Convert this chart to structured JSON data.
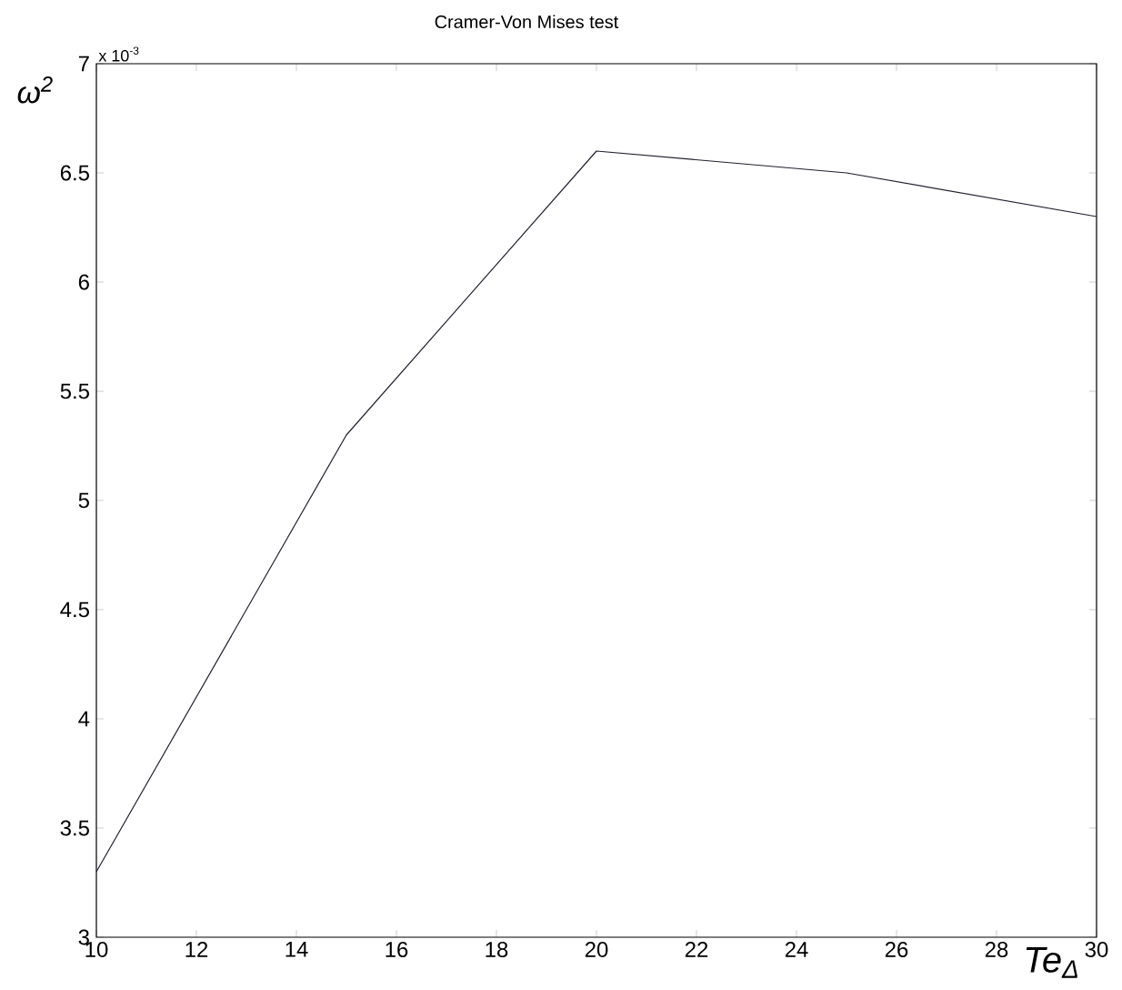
{
  "chart_data": {
    "type": "line",
    "title": "Cramer-Von Mises test",
    "xlabel": "Te$_{Δ}$",
    "ylabel": "ω$^{2}$",
    "annotations": [
      "x 10$^{-3}$"
    ],
    "x": [
      10,
      15,
      20,
      25,
      30
    ],
    "series": [
      {
        "color": "#202030",
        "values": [
          3.3,
          5.3,
          6.6,
          6.5,
          6.3
        ]
      }
    ],
    "xlim": [
      10,
      30
    ],
    "ylim": [
      3,
      7
    ],
    "xticks": [
      10,
      12,
      14,
      16,
      18,
      20,
      22,
      24,
      26,
      28,
      30
    ],
    "yticks": [
      3,
      3.5,
      4,
      4.5,
      5,
      5.5,
      6,
      6.5,
      7
    ]
  }
}
